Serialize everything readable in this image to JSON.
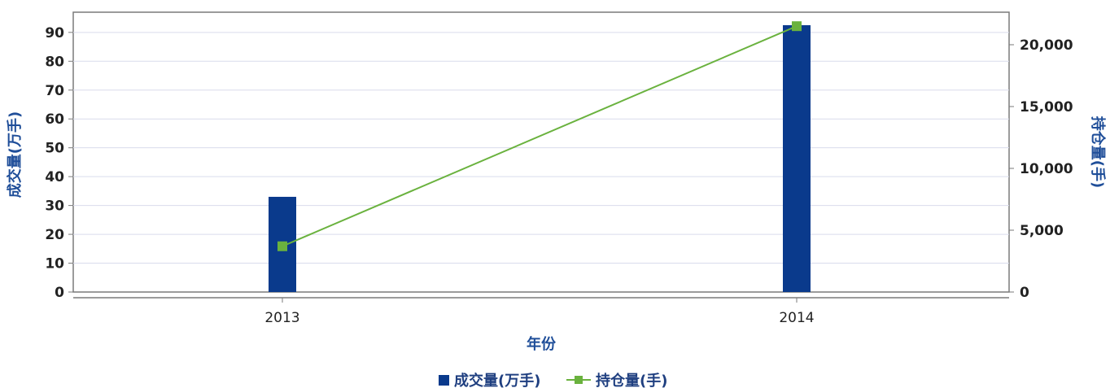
{
  "chart_data": {
    "type": "bar",
    "categories": [
      "2013",
      "2014"
    ],
    "xlabel": "年份",
    "ylabel_left": "成交量(万手)",
    "ylabel_right": "持仓量(手)",
    "ylim_left": [
      0,
      97
    ],
    "ylim_right": [
      0,
      22630
    ],
    "yticks_left": [
      "0",
      "10",
      "20",
      "30",
      "40",
      "50",
      "60",
      "70",
      "80",
      "90"
    ],
    "yticks_right": [
      "0",
      "5,000",
      "10,000",
      "15,000",
      "20,000"
    ],
    "grid": true,
    "legend_position": "bottom",
    "series": [
      {
        "name": "成交量(万手)",
        "type": "bar",
        "axis": "left",
        "color": "#0a3a8c",
        "values": [
          33,
          92.5
        ]
      },
      {
        "name": "持仓量(手)",
        "type": "line",
        "axis": "right",
        "color": "#6ab23e",
        "values": [
          3700,
          21500
        ]
      }
    ]
  }
}
